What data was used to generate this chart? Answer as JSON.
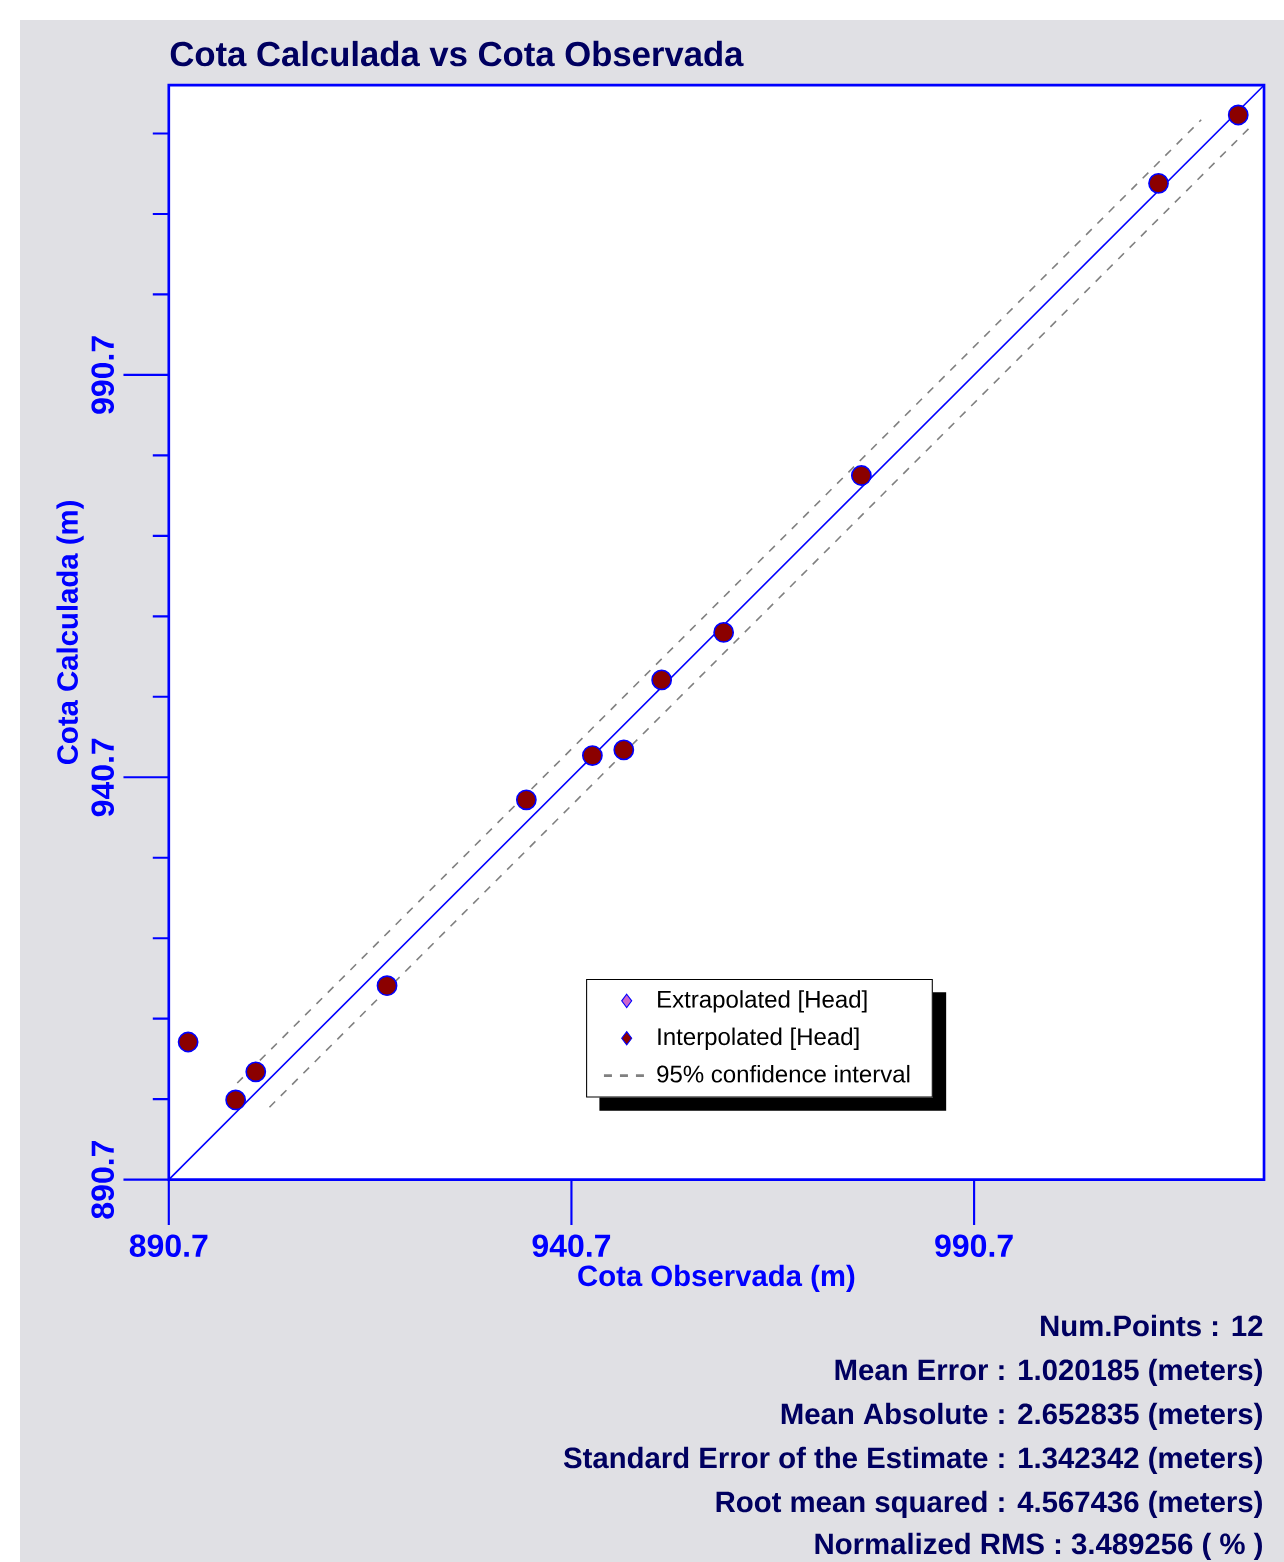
{
  "chart_data": {
    "type": "scatter",
    "title": "Cota Calculada vs Cota Observada",
    "xlabel": "Cota Observada (m)",
    "ylabel": "Cota Calculada (m)",
    "xlim": [
      890.7,
      1026.7
    ],
    "ylim": [
      890.7,
      1026.7
    ],
    "xticks": [
      890.7,
      940.7,
      990.7
    ],
    "yticks": [
      890.7,
      {
        "value": 900.7,
        "label": null
      },
      {
        "value": 910.7,
        "label": null
      },
      {
        "value": 920.7,
        "label": null
      },
      {
        "value": 930.7,
        "label": null
      },
      940.7,
      {
        "value": 950.7,
        "label": null
      },
      {
        "value": 960.7,
        "label": null
      },
      {
        "value": 970.7,
        "label": null
      },
      {
        "value": 980.7,
        "label": null
      },
      990.7,
      {
        "value": 1000.7,
        "label": null
      },
      {
        "value": 1010.7,
        "label": null
      },
      {
        "value": 1020.7,
        "label": null
      }
    ],
    "legend": "bottom right",
    "series": [
      {
        "name": "Extrapolated [Head]",
        "marker": "diamond",
        "color": "#cc66cc"
      },
      {
        "name": "Interpolated [Head]",
        "marker": "circle",
        "color": "#8b0000",
        "x": [
          893.1,
          899.0,
          901.5,
          917.8,
          935.1,
          943.3,
          947.2,
          951.9,
          959.6,
          976.7,
          1013.6,
          1023.5
        ],
        "values": [
          907.8,
          900.6,
          904.1,
          914.8,
          937.9,
          943.4,
          944.1,
          952.8,
          958.7,
          978.2,
          1014.5,
          1023.0
        ]
      },
      {
        "name": "95% confidence interval",
        "type": "line",
        "marker": "none",
        "line_style": "dashed",
        "color": "#808080",
        "x": [
          899.2,
          1018.9
        ],
        "values": [
          902.7,
          1022.4
        ]
      },
      {
        "type": "line",
        "marker": "none",
        "line_style": "dashed",
        "color": "#808080",
        "x": [
          903.2,
          1025.0
        ],
        "values": [
          899.7,
          1021.5
        ]
      },
      {
        "type": "line",
        "marker": "none",
        "line_style": "solid",
        "color": "#0000ff",
        "x": [
          890.7,
          1026.7
        ],
        "values": [
          890.7,
          1026.7
        ]
      }
    ],
    "annotations": [
      "Num.Points : 12",
      "Mean Error : 1.020185 (meters)",
      "Mean Absolute : 2.652835 (meters)",
      "Standard Error of the Estimate : 1.342342 (meters)",
      "Root mean squared : 4.567436 (meters)",
      "Normalized RMS : 3.489256 ( % )"
    ]
  }
}
